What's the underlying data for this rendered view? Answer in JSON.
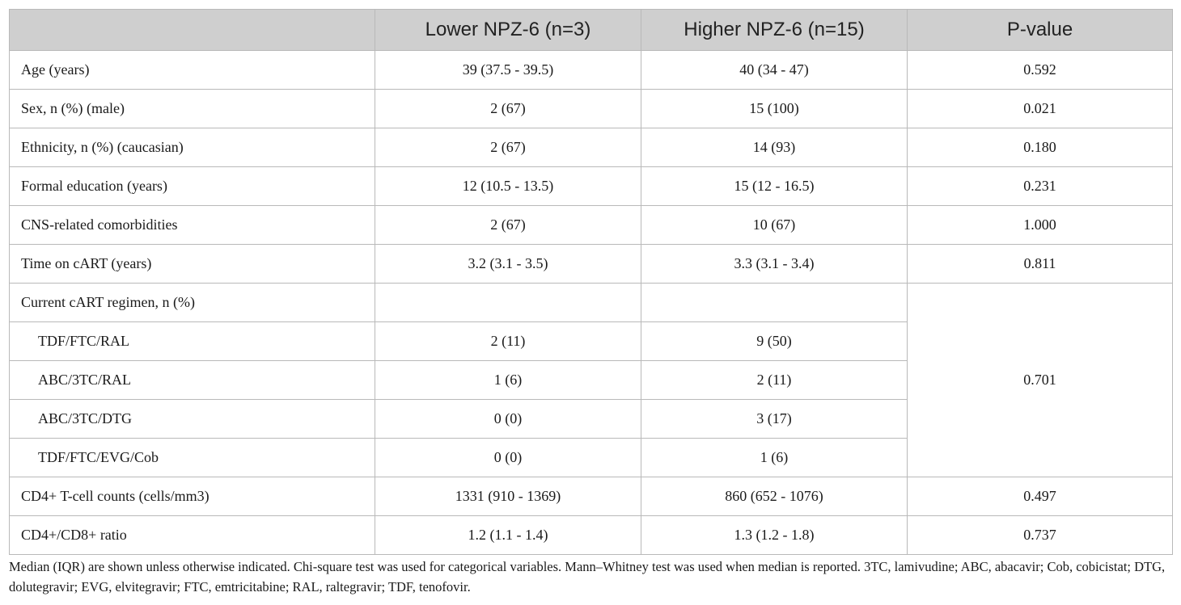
{
  "table": {
    "headers": [
      "",
      "Lower NPZ-6 (n=3)",
      "Higher NPZ-6 (n=15)",
      "P-value"
    ],
    "rows": [
      {
        "label": "Age (years)",
        "lower": "39 (37.5 - 39.5)",
        "higher": "40 (34 - 47)",
        "p": "0.592"
      },
      {
        "label": "Sex, n (%) (male)",
        "lower": "2 (67)",
        "higher": "15 (100)",
        "p": "0.021"
      },
      {
        "label": "Ethnicity, n (%) (caucasian)",
        "lower": "2 (67)",
        "higher": "14 (93)",
        "p": "0.180"
      },
      {
        "label": "Formal education (years)",
        "lower": "12 (10.5 - 13.5)",
        "higher": "15 (12 - 16.5)",
        "p": "0.231"
      },
      {
        "label": "CNS-related comorbidities",
        "lower": "2 (67)",
        "higher": "10 (67)",
        "p": "1.000"
      },
      {
        "label": "Time on cART (years)",
        "lower": "3.2 (3.1 - 3.5)",
        "higher": "3.3 (3.1 - 3.4)",
        "p": "0.811"
      }
    ],
    "regimen": {
      "label": "Current cART regimen, n (%)",
      "p": "0.701",
      "subrows": [
        {
          "label": "TDF/FTC/RAL",
          "lower": "2 (11)",
          "higher": "9 (50)"
        },
        {
          "label": "ABC/3TC/RAL",
          "lower": "1 (6)",
          "higher": "2 (11)"
        },
        {
          "label": "ABC/3TC/DTG",
          "lower": "0 (0)",
          "higher": "3 (17)"
        },
        {
          "label": "TDF/FTC/EVG/Cob",
          "lower": "0 (0)",
          "higher": "1 (6)"
        }
      ]
    },
    "rows_after": [
      {
        "label": "CD4+ T-cell counts (cells/mm3)",
        "lower": "1331 (910 - 1369)",
        "higher": "860 (652 - 1076)",
        "p": "0.497"
      },
      {
        "label": "CD4+/CD8+ ratio",
        "lower": "1.2 (1.1 - 1.4)",
        "higher": "1.3 (1.2 - 1.8)",
        "p": "0.737"
      }
    ]
  },
  "footnote": "Median (IQR) are shown unless otherwise indicated. Chi-square test was used for categorical variables. Mann–Whitney test was used when median is reported. 3TC, lamivudine; ABC, abacavir; Cob, cobicistat; DTG, dolutegravir; EVG, elvitegravir; FTC, emtricitabine; RAL, raltegravir; TDF, tenofovir."
}
